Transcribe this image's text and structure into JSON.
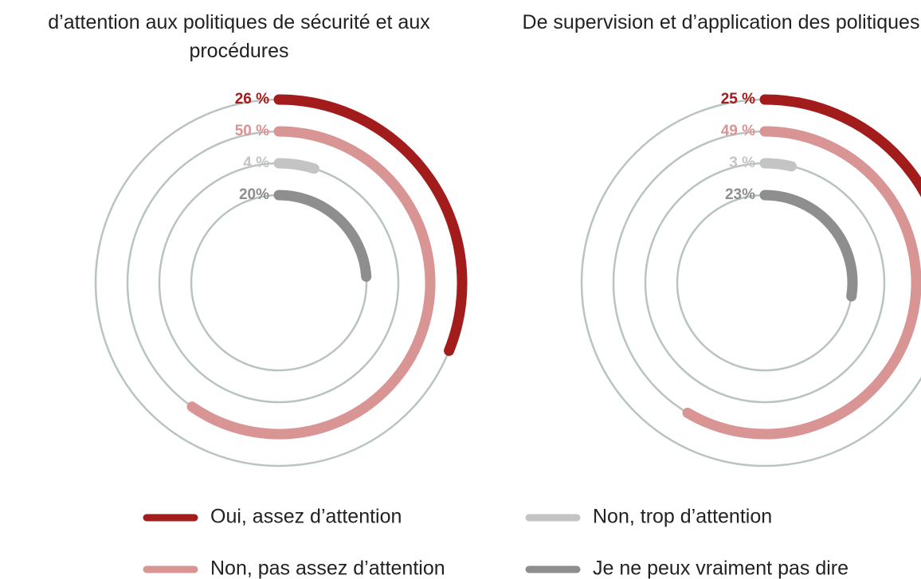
{
  "chart_data": [
    {
      "type": "radial_bar",
      "title": "d’attention aux politiques de sécurité et aux procédures",
      "series": [
        {
          "name": "Oui, assez d’attention",
          "color": "#a31c1c",
          "values": [
            26
          ],
          "value_labels": [
            "26 %"
          ]
        },
        {
          "name": "Non, pas assez d’attention",
          "color": "#d99494",
          "values": [
            50
          ],
          "value_labels": [
            "50 %"
          ]
        },
        {
          "name": "Non, trop d’attention",
          "color": "#c4c4c4",
          "values": [
            4
          ],
          "value_labels": [
            "4 %"
          ]
        },
        {
          "name": "Je ne peux vraiment pas dire",
          "color": "#8e8e8e",
          "values": [
            20
          ],
          "value_labels": [
            "20%"
          ]
        }
      ]
    },
    {
      "type": "radial_bar",
      "title": "De supervision et d’application des politiques",
      "series": [
        {
          "name": "Oui, assez d’attention",
          "color": "#a31c1c",
          "values": [
            25
          ],
          "value_labels": [
            "25 %"
          ]
        },
        {
          "name": "Non, pas assez d’attention",
          "color": "#d99494",
          "values": [
            49
          ],
          "value_labels": [
            "49 %"
          ]
        },
        {
          "name": "Non, trop d’attention",
          "color": "#c4c4c4",
          "values": [
            3
          ],
          "value_labels": [
            "3 %"
          ]
        },
        {
          "name": "Je ne peux vraiment pas dire",
          "color": "#8e8e8e",
          "values": [
            23
          ],
          "value_labels": [
            "23%"
          ]
        }
      ]
    }
  ]
}
